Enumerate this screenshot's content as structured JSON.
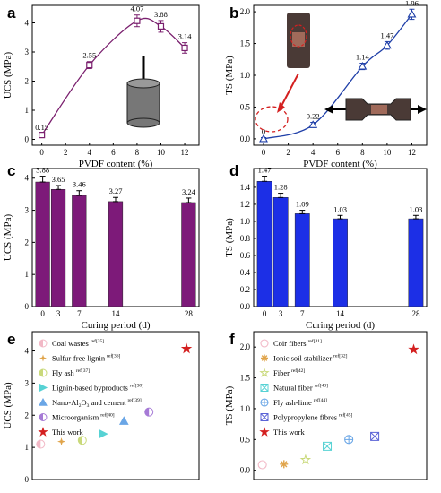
{
  "chart_data": [
    {
      "id": "a",
      "panel_label": "a",
      "type": "line",
      "xlabel": "PVDF content (%)",
      "ylabel": "UCS (MPa)",
      "x": [
        0,
        4,
        8,
        10,
        12
      ],
      "values": [
        0.15,
        2.55,
        4.07,
        3.88,
        3.14
      ],
      "errors": [
        0.05,
        0.12,
        0.2,
        0.2,
        0.18
      ],
      "data_labels": [
        "0.15",
        "2.55",
        "4.07",
        "3.88",
        "3.14"
      ],
      "xticks": [
        "0",
        "2",
        "4",
        "6",
        "8",
        "10",
        "12"
      ],
      "yticks": [
        "0",
        "1",
        "2",
        "3",
        "4"
      ],
      "xlim": [
        -0.8,
        13.2
      ],
      "ylim": [
        -0.2,
        4.6
      ],
      "color": "#7a1f6e",
      "inset": "cylinder specimen sketch"
    },
    {
      "id": "b",
      "panel_label": "b",
      "type": "line",
      "xlabel": "PVDF content (%)",
      "ylabel": "TS (MPa)",
      "x": [
        0,
        4,
        8,
        10,
        12
      ],
      "values": [
        0.0,
        0.22,
        1.14,
        1.47,
        1.96
      ],
      "errors": [
        0.02,
        0.04,
        0.05,
        0.06,
        0.08
      ],
      "data_labels": [
        "0",
        "0.22",
        "1.14",
        "1.47",
        "1.96"
      ],
      "xticks": [
        "0",
        "2",
        "4",
        "6",
        "8",
        "10",
        "12"
      ],
      "yticks": [
        "0.0",
        "0.5",
        "1.0",
        "1.5",
        "2.0"
      ],
      "xlim": [
        -0.8,
        13.2
      ],
      "ylim": [
        -0.1,
        2.1
      ],
      "color": "#1f3fa8",
      "inset": "dog-bone specimen photos"
    },
    {
      "id": "c",
      "panel_label": "c",
      "type": "bar",
      "xlabel": "Curing period (d)",
      "ylabel": "UCS (MPa)",
      "x": [
        0,
        3,
        7,
        14,
        28
      ],
      "values": [
        3.88,
        3.65,
        3.46,
        3.27,
        3.24
      ],
      "errors": [
        0.18,
        0.12,
        0.15,
        0.13,
        0.14
      ],
      "data_labels": [
        "3.88",
        "3.65",
        "3.46",
        "3.27",
        "3.24"
      ],
      "xticks": [
        "0",
        "3",
        "7",
        "14",
        "28"
      ],
      "yticks": [
        "0",
        "1",
        "2",
        "3",
        "4"
      ],
      "xlim": [
        -2,
        30
      ],
      "ylim": [
        0,
        4.3
      ],
      "color": "#7d1a79"
    },
    {
      "id": "d",
      "panel_label": "d",
      "type": "bar",
      "xlabel": "Curing period (d)",
      "ylabel": "TS (MPa)",
      "x": [
        0,
        3,
        7,
        14,
        28
      ],
      "values": [
        1.47,
        1.28,
        1.09,
        1.03,
        1.03
      ],
      "errors": [
        0.06,
        0.05,
        0.04,
        0.04,
        0.04
      ],
      "data_labels": [
        "1.47",
        "1.28",
        "1.09",
        "1.03",
        "1.03"
      ],
      "xticks": [
        "0",
        "3",
        "7",
        "14",
        "28"
      ],
      "yticks": [
        "0.0",
        "0.2",
        "0.4",
        "0.6",
        "0.8",
        "1.0",
        "1.2",
        "1.4"
      ],
      "xlim": [
        -2,
        30
      ],
      "ylim": [
        0,
        1.62
      ],
      "color": "#1c2fe6"
    },
    {
      "id": "e",
      "panel_label": "e",
      "type": "scatter",
      "ylabel": "UCS (MPa)",
      "yticks": [
        "0",
        "1",
        "2",
        "3",
        "4"
      ],
      "xlim": [
        0,
        8
      ],
      "ylim": [
        0,
        4.6
      ],
      "series": [
        {
          "name": "Coal wastes",
          "ref": "ref[35]",
          "x": 0.4,
          "value": 1.1,
          "color": "#f2b8c6",
          "marker": "circle-half"
        },
        {
          "name": "Sulfur-free lignin",
          "ref": "ref[36]",
          "x": 1.4,
          "value": 1.18,
          "color": "#e0a44a",
          "marker": "star4"
        },
        {
          "name": "Fly ash",
          "ref": "ref[37]",
          "x": 2.4,
          "value": 1.22,
          "color": "#c9d97a",
          "marker": "circle-half"
        },
        {
          "name": "Lignin-based byproducts",
          "ref": "ref[38]",
          "x": 3.4,
          "value": 1.42,
          "color": "#57d2d4",
          "marker": "triangle-right"
        },
        {
          "name": "Nano-Al",
          "name_sub": "2",
          "name_tail": "O",
          "name_sub2": "3",
          "name_end": " and cement",
          "ref": "ref[39]",
          "x": 4.4,
          "value": 1.82,
          "color": "#6aa6e6",
          "marker": "triangle-up"
        },
        {
          "name": "Microorganism",
          "ref": "ref[40]",
          "x": 5.6,
          "value": 2.1,
          "color": "#a67ad6",
          "marker": "circle-half"
        },
        {
          "name": "This work",
          "ref": "",
          "x": 7.4,
          "value": 4.07,
          "color": "#d42020",
          "marker": "star"
        }
      ]
    },
    {
      "id": "f",
      "panel_label": "f",
      "type": "scatter",
      "ylabel": "TS (MPa)",
      "yticks": [
        "0.0",
        "0.5",
        "1.0",
        "1.5",
        "2.0"
      ],
      "xlim": [
        0,
        8
      ],
      "ylim": [
        -0.15,
        2.25
      ],
      "series": [
        {
          "name": "Coir fibers",
          "ref": "ref[41]",
          "x": 0.4,
          "value": 0.09,
          "color": "#f2b8c6",
          "marker": "circle-open"
        },
        {
          "name": "Ionic soil stabilizer",
          "ref": "ref[32]",
          "x": 1.4,
          "value": 0.1,
          "color": "#e0a44a",
          "marker": "asterisk"
        },
        {
          "name": "Fiber",
          "ref": "ref[42]",
          "x": 2.4,
          "value": 0.17,
          "color": "#c9d97a",
          "marker": "star-open"
        },
        {
          "name": "Natural fiber",
          "ref": "ref[43]",
          "x": 3.4,
          "value": 0.39,
          "color": "#57d2d4",
          "marker": "square-x"
        },
        {
          "name": "Fly ash-lime",
          "ref": "ref[44]",
          "x": 4.4,
          "value": 0.5,
          "color": "#6aa6e6",
          "marker": "circle-plus"
        },
        {
          "name": "Polypropylene fibres",
          "ref": "ref[45]",
          "x": 5.6,
          "value": 0.55,
          "color": "#5a63d6",
          "marker": "square-x"
        },
        {
          "name": "This work",
          "ref": "",
          "x": 7.4,
          "value": 1.96,
          "color": "#d42020",
          "marker": "star"
        }
      ]
    }
  ]
}
